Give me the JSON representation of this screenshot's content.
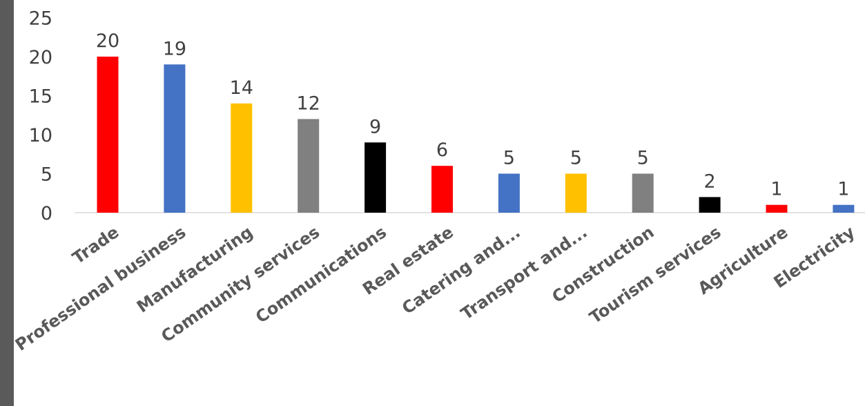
{
  "chart_data": {
    "type": "bar",
    "categories": [
      "Trade",
      "Professional business",
      "Manufacturing",
      "Community services",
      "Communications",
      "Real estate",
      "Catering and...",
      "Transport and...",
      "Construction",
      "Tourism services",
      "Agriculture",
      "Electricity"
    ],
    "values": [
      20,
      19,
      14,
      12,
      9,
      6,
      5,
      5,
      5,
      2,
      1,
      1
    ],
    "bar_colors": [
      "#ff0000",
      "#4472c4",
      "#ffc000",
      "#808080",
      "#000000",
      "#ff0000",
      "#4472c4",
      "#ffc000",
      "#808080",
      "#000000",
      "#ff0000",
      "#4472c4"
    ],
    "y_ticks": [
      0,
      5,
      10,
      15,
      20,
      25
    ],
    "ylim": [
      0,
      25
    ],
    "grid": false,
    "legend": "none",
    "title": "",
    "xlabel": "",
    "ylabel": ""
  }
}
